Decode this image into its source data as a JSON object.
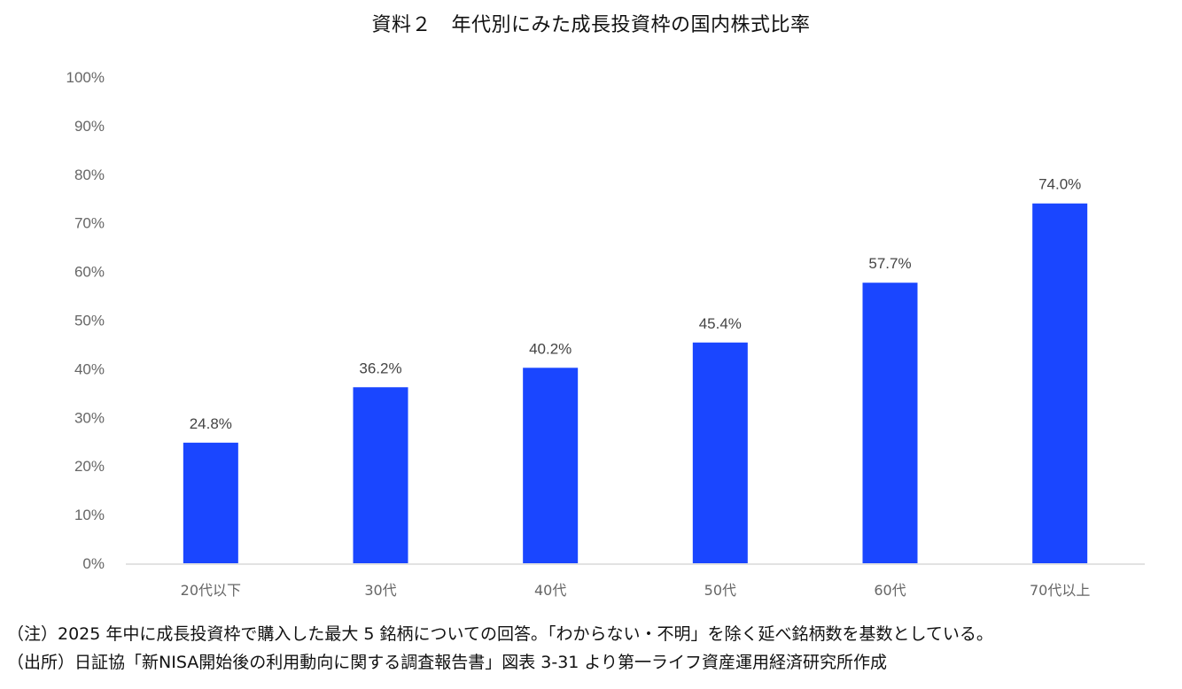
{
  "title": "資料２　年代別にみた成長投資枠の国内株式比率",
  "chart_data": {
    "type": "bar",
    "title": "資料２　年代別にみた成長投資枠の国内株式比率",
    "categories": [
      "20代以下",
      "30代",
      "40代",
      "50代",
      "60代",
      "70代以上"
    ],
    "values": [
      24.8,
      36.2,
      40.2,
      45.4,
      57.7,
      74.0
    ],
    "data_labels": [
      "24.8%",
      "36.2%",
      "40.2%",
      "45.4%",
      "57.7%",
      "74.0%"
    ],
    "ylim": [
      0,
      100
    ],
    "yticks": [
      0,
      10,
      20,
      30,
      40,
      50,
      60,
      70,
      80,
      90,
      100
    ],
    "ytick_labels": [
      "0%",
      "10%",
      "20%",
      "30%",
      "40%",
      "50%",
      "60%",
      "70%",
      "80%",
      "90%",
      "100%"
    ],
    "xlabel": "",
    "ylabel": "",
    "grid": false,
    "bar_color": "#1a46ff",
    "axis_color": "#d9d9d9"
  },
  "notes": [
    "（注）2025 年中に成長投資枠で購入した最大 5 銘柄についての回答。「わからない・不明」を除く延べ銘柄数を基数としている。",
    "（出所）日証協「新NISA開始後の利用動向に関する調査報告書」図表 3-31 より第一ライフ資産運用経済研究所作成"
  ]
}
